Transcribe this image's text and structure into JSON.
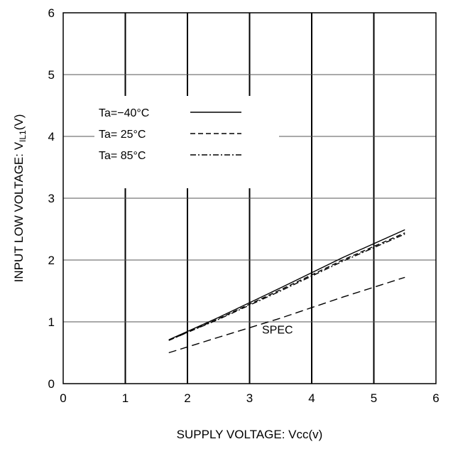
{
  "chart_data": {
    "type": "line",
    "xlabel": "SUPPLY VOLTAGE: Vcc(v)",
    "ylabel": {
      "main": "INPUT LOW VOLTAGE: V",
      "sub": "IL1",
      "suffix": "(V)"
    },
    "xlim": [
      0,
      6
    ],
    "ylim": [
      0,
      6
    ],
    "xticks": [
      "0",
      "1",
      "2",
      "3",
      "4",
      "5",
      "6"
    ],
    "yticks": [
      "0",
      "1",
      "2",
      "3",
      "4",
      "5",
      "6"
    ],
    "grid": true,
    "legend_position": "upper-left",
    "series": [
      {
        "name": "Ta=−40°C",
        "style": "solid",
        "x": [
          1.7,
          2.5,
          3.5,
          4.5,
          5.5
        ],
        "y": [
          0.71,
          1.07,
          1.55,
          2.04,
          2.49
        ]
      },
      {
        "name": "Ta= 25°C",
        "style": "dashed",
        "x": [
          1.7,
          2.5,
          3.5,
          4.5,
          5.5
        ],
        "y": [
          0.7,
          1.05,
          1.52,
          2.0,
          2.44
        ]
      },
      {
        "name": "Ta= 85°C",
        "style": "dashdot",
        "x": [
          1.7,
          2.5,
          3.5,
          4.5,
          5.5
        ],
        "y": [
          0.7,
          1.04,
          1.5,
          1.98,
          2.42
        ]
      },
      {
        "name": "",
        "style": "longdash",
        "x": [
          1.7,
          2.5,
          3.5,
          4.5,
          5.5
        ],
        "y": [
          0.5,
          0.75,
          1.06,
          1.4,
          1.72
        ]
      }
    ],
    "annotations": [
      {
        "text": "SPEC",
        "x": 3.2,
        "y": 0.88
      }
    ]
  }
}
